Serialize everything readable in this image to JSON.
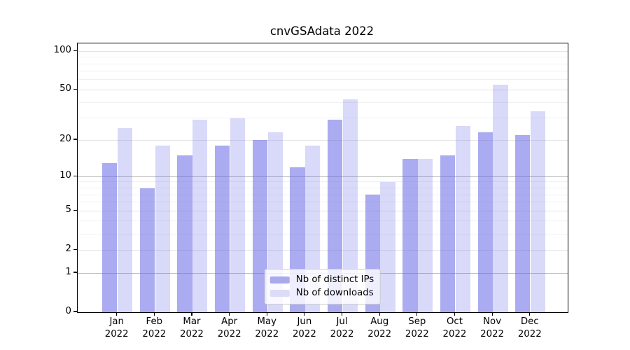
{
  "chart_data": {
    "type": "bar",
    "title": "cnvGSAdata 2022",
    "categories": [
      "Jan",
      "Feb",
      "Mar",
      "Apr",
      "May",
      "Jun",
      "Jul",
      "Aug",
      "Sep",
      "Oct",
      "Nov",
      "Dec"
    ],
    "category_sublabel": "2022",
    "series": [
      {
        "name": "Nb of distinct IPs",
        "slug": "distinct-ips",
        "values": [
          13,
          8,
          15,
          18,
          20,
          12,
          29,
          7,
          14,
          15,
          23,
          22
        ],
        "color": "rgba(102,102,230,0.55)",
        "legend_color": "#a9a9ef"
      },
      {
        "name": "Nb of downloads",
        "slug": "downloads",
        "values": [
          25,
          18,
          29,
          30,
          23,
          18,
          42,
          9,
          14,
          26,
          55,
          34
        ],
        "color": "rgba(102,102,230,0.25)",
        "legend_color": "#dcdcf8"
      }
    ],
    "yscale": "log1p",
    "ylim": [
      0,
      115
    ],
    "yticks": [
      0,
      1,
      2,
      5,
      10,
      20,
      50,
      100
    ],
    "minor_gridlines": [
      3,
      4,
      6,
      7,
      8,
      9,
      30,
      40,
      60,
      70,
      80,
      90
    ],
    "strong_gridlines": [
      1,
      10
    ],
    "grid": true,
    "legend_position": "lower center"
  }
}
